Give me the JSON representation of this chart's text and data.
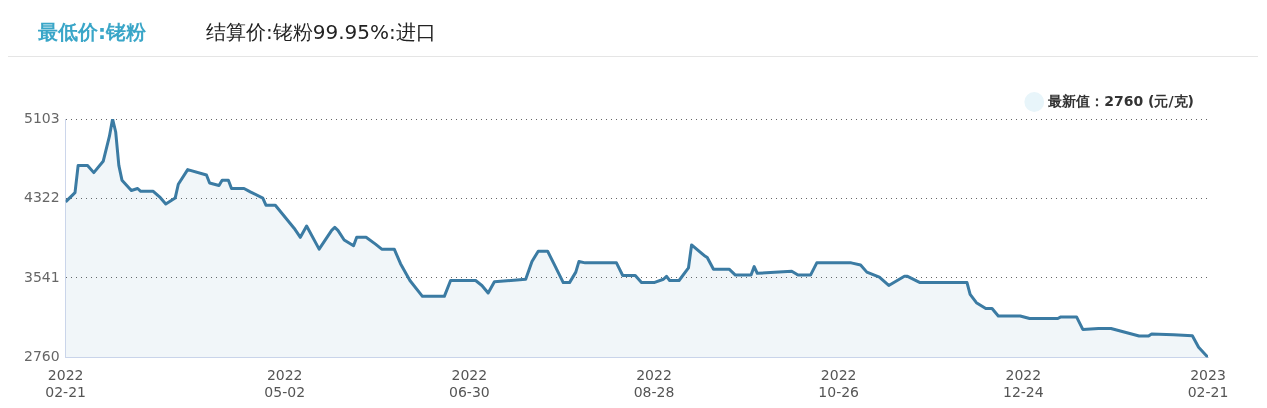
{
  "chart_data": {
    "type": "area",
    "title": "最低价:铑粉",
    "subtitle": "结算价:铑粉99.95%:进口",
    "x": [
      "2022-02-21",
      "2022-02-24",
      "2022-02-25",
      "2022-02-28",
      "2022-03-02",
      "2022-03-05",
      "2022-03-07",
      "2022-03-08",
      "2022-03-09",
      "2022-03-10",
      "2022-03-11",
      "2022-03-14",
      "2022-03-16",
      "2022-03-17",
      "2022-03-21",
      "2022-03-23",
      "2022-03-25",
      "2022-03-28",
      "2022-03-29",
      "2022-04-01",
      "2022-04-07",
      "2022-04-08",
      "2022-04-11",
      "2022-04-12",
      "2022-04-14",
      "2022-04-15",
      "2022-04-19",
      "2022-04-21",
      "2022-04-25",
      "2022-04-26",
      "2022-04-29",
      "2022-05-05",
      "2022-05-07",
      "2022-05-09",
      "2022-05-13",
      "2022-05-17",
      "2022-05-18",
      "2022-05-19",
      "2022-05-21",
      "2022-05-24",
      "2022-05-25",
      "2022-05-28",
      "2022-05-31",
      "2022-06-02",
      "2022-06-06",
      "2022-06-08",
      "2022-06-11",
      "2022-06-15",
      "2022-06-22",
      "2022-06-24",
      "2022-07-02",
      "2022-07-04",
      "2022-07-06",
      "2022-07-08",
      "2022-07-18",
      "2022-07-20",
      "2022-07-22",
      "2022-07-25",
      "2022-07-27",
      "2022-07-30",
      "2022-08-01",
      "2022-08-03",
      "2022-08-04",
      "2022-08-06",
      "2022-08-16",
      "2022-08-18",
      "2022-08-22",
      "2022-08-24",
      "2022-08-28",
      "2022-08-31",
      "2022-09-01",
      "2022-09-02",
      "2022-09-05",
      "2022-09-08",
      "2022-09-09",
      "2022-09-13",
      "2022-09-14",
      "2022-09-16",
      "2022-09-21",
      "2022-09-23",
      "2022-09-28",
      "2022-09-29",
      "2022-09-30",
      "2022-10-11",
      "2022-10-13",
      "2022-10-17",
      "2022-10-19",
      "2022-10-30",
      "2022-11-02",
      "2022-11-04",
      "2022-11-08",
      "2022-11-11",
      "2022-11-16",
      "2022-11-17",
      "2022-11-21",
      "2022-12-06",
      "2022-12-07",
      "2022-12-09",
      "2022-12-12",
      "2022-12-14",
      "2022-12-16",
      "2022-12-23",
      "2022-12-26",
      "2023-01-04",
      "2023-01-05",
      "2023-01-10",
      "2023-01-12",
      "2023-01-17",
      "2023-01-21",
      "2023-01-30",
      "2023-02-02",
      "2023-02-03",
      "2023-02-10",
      "2023-02-16",
      "2023-02-18",
      "2023-02-21"
    ],
    "series": [
      {
        "name": "最新值：2760 (元/克)",
        "color": "#3b7ba3",
        "values": [
          4289,
          4379,
          4647,
          4647,
          4576,
          4687,
          4934,
          5103,
          4975,
          4647,
          4502,
          4400,
          4420,
          4392,
          4392,
          4338,
          4268,
          4326,
          4462,
          4606,
          4552,
          4474,
          4449,
          4502,
          4502,
          4420,
          4420,
          4387,
          4326,
          4256,
          4256,
          4030,
          3940,
          4051,
          3824,
          4009,
          4038,
          4009,
          3914,
          3857,
          3940,
          3940,
          3873,
          3824,
          3824,
          3681,
          3516,
          3360,
          3360,
          3516,
          3516,
          3467,
          3393,
          3504,
          3528,
          3702,
          3804,
          3804,
          3681,
          3495,
          3495,
          3598,
          3702,
          3689,
          3689,
          3565,
          3565,
          3495,
          3495,
          3528,
          3557,
          3516,
          3516,
          3639,
          3865,
          3762,
          3742,
          3627,
          3627,
          3569,
          3569,
          3652,
          3586,
          3607,
          3569,
          3569,
          3689,
          3689,
          3668,
          3598,
          3549,
          3467,
          3557,
          3557,
          3495,
          3495,
          3380,
          3298,
          3241,
          3241,
          3167,
          3167,
          3142,
          3142,
          3158,
          3158,
          3035,
          3044,
          3044,
          2970,
          2970,
          2991,
          2982,
          2973,
          2859,
          2760
        ]
      }
    ],
    "xlim": [
      "2022-02-21",
      "2023-02-21"
    ],
    "xticks": [
      {
        "value": "2022-02-21",
        "label": "2022 02-21"
      },
      {
        "value": "2022-05-02",
        "label": "2022 05-02"
      },
      {
        "value": "2022-06-30",
        "label": "2022 06-30"
      },
      {
        "value": "2022-08-28",
        "label": "2022 08-28"
      },
      {
        "value": "2022-10-26",
        "label": "2022 10-26"
      },
      {
        "value": "2022-12-24",
        "label": "2022 12-24"
      },
      {
        "value": "2023-02-21",
        "label": "2023 02-21"
      }
    ],
    "ylim": [
      2760,
      5103
    ],
    "yticks": [
      2760,
      3541,
      4322,
      5103
    ],
    "grid": "y",
    "legend": "top right",
    "marker": "none",
    "line_style": "solid"
  }
}
